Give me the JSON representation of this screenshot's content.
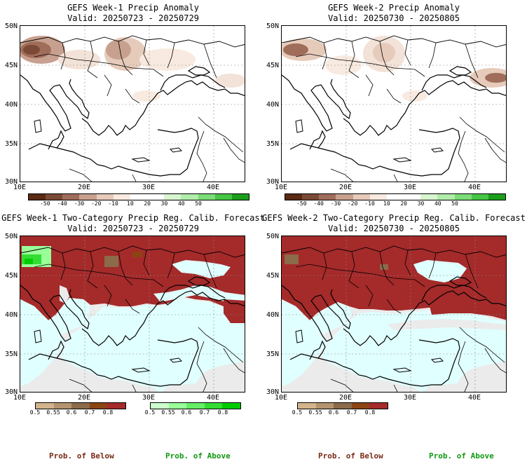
{
  "panels": [
    {
      "title": "GEFS Week-1 Precip Anomaly",
      "valid": "Valid: 20250723 - 20250729"
    },
    {
      "title": "GEFS Week-2 Precip Anomaly",
      "valid": "Valid: 20250730 - 20250805"
    },
    {
      "title": "GEFS Week-1 Two-Category Precip Reg. Calib. Forecast",
      "valid": "Valid: 20250723 - 20250729"
    },
    {
      "title": "GEFS Week-2 Two-Category Precip Reg. Calib. Forecast",
      "valid": "Valid: 20250730 - 20250805"
    }
  ],
  "lat_labels": [
    "50N",
    "45N",
    "40N",
    "35N",
    "30N"
  ],
  "lon_labels": [
    "10E",
    "20E",
    "30E",
    "40E"
  ],
  "anomaly_scale": {
    "ticks": [
      "-50",
      "-40",
      "-30",
      "-20",
      "-10",
      "10",
      "20",
      "30",
      "40",
      "50"
    ],
    "colors": [
      "#5a2a14",
      "#7b4a36",
      "#a16d5b",
      "#c8a08f",
      "#e6cbbb",
      "#f8eae0",
      "#ffffff",
      "#ffffff",
      "#d9f5d0",
      "#b0ecaa",
      "#7cdc78",
      "#46c646",
      "#1b9e1b"
    ]
  },
  "prob_scale": {
    "ticks": [
      "0.5",
      "0.55",
      "0.6",
      "0.7",
      "0.8"
    ],
    "below_colors": [
      "#d2b48c",
      "#b59470",
      "#8b6b4a",
      "#8b4513",
      "#a52a2a"
    ],
    "above_colors": [
      "#ccffcc",
      "#99ff99",
      "#66ee66",
      "#33dd33",
      "#00cc00"
    ]
  },
  "legend": {
    "below": "Prob. of Below",
    "above": "Prob. of Above"
  },
  "colors": {
    "dry_red": "#a52a2a",
    "sea_cyan": "#e0ffff",
    "grey": "#ebebeb"
  }
}
